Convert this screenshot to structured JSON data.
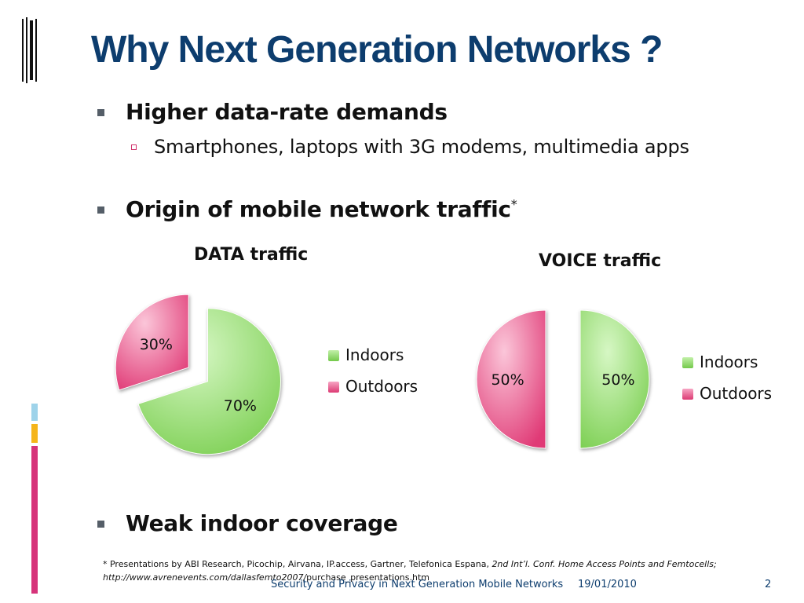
{
  "slide": {
    "title": "Why Next Generation Networks ?",
    "bullets": {
      "b1": "Higher data-rate demands",
      "b1_sub": "Smartphones, laptops with 3G modems, multimedia apps",
      "b2": "Origin of mobile network traffic",
      "b2_sup": "*",
      "b3": "Weak indoor coverage"
    },
    "footnote": {
      "line1_plain": "* Presentations by ABI Research, Picochip, Airvana, IP.access, Gartner, Telefonica Espana, ",
      "line1_italic": "2nd Int’l. Conf. Home Access Points and Femtocells;",
      "line2_italic": "http://www.avrenevents.com/dallasfemto2007/",
      "line2_plain": "purchase_presentations.htm"
    },
    "footer": {
      "text": "Security and Privacy in Next Generation Mobile Networks",
      "date": "19/01/2010",
      "page": "2"
    },
    "colors": {
      "title": "#0d3d6e",
      "indoors": "#8cd865",
      "outdoors": "#e8467e",
      "strip_blue": "#9ed3ea",
      "strip_yellow": "#f5b51b",
      "strip_pink": "#d6337a"
    }
  },
  "chart_data": [
    {
      "type": "pie",
      "title": "DATA traffic",
      "categories": [
        "Indoors",
        "Outdoors"
      ],
      "values": [
        70,
        30
      ],
      "labels": [
        "70%",
        "30%"
      ],
      "legend": "right",
      "exploded": true
    },
    {
      "type": "pie",
      "title": "VOICE traffic",
      "categories": [
        "Indoors",
        "Outdoors"
      ],
      "values": [
        50,
        50
      ],
      "labels": [
        "50%",
        "50%"
      ],
      "legend": "right",
      "exploded": true
    }
  ]
}
